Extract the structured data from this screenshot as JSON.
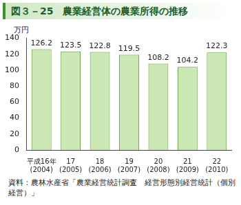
{
  "chart_data": {
    "type": "bar",
    "title": "図３－25　農業経営体の農業所得の推移",
    "ylabel": "万円",
    "categories": [
      [
        "平成16年",
        "(2004)"
      ],
      [
        "17",
        "(2005)"
      ],
      [
        "18",
        "(2006)"
      ],
      [
        "19",
        "(2007)"
      ],
      [
        "20",
        "(2008)"
      ],
      [
        "21",
        "(2009)"
      ],
      [
        "22",
        "(2010)"
      ]
    ],
    "values": [
      126.2,
      123.5,
      122.8,
      119.5,
      108.2,
      104.2,
      122.3
    ],
    "color": "#cbe8b5",
    "ylim": [
      0,
      140
    ],
    "yticks": [
      0,
      20,
      40,
      60,
      80,
      100,
      120,
      140
    ],
    "grid": false,
    "data_labels": true,
    "source": "資料：農林水産省「農業経営統計調査　経営形態別経営統計（個別経営）」"
  }
}
